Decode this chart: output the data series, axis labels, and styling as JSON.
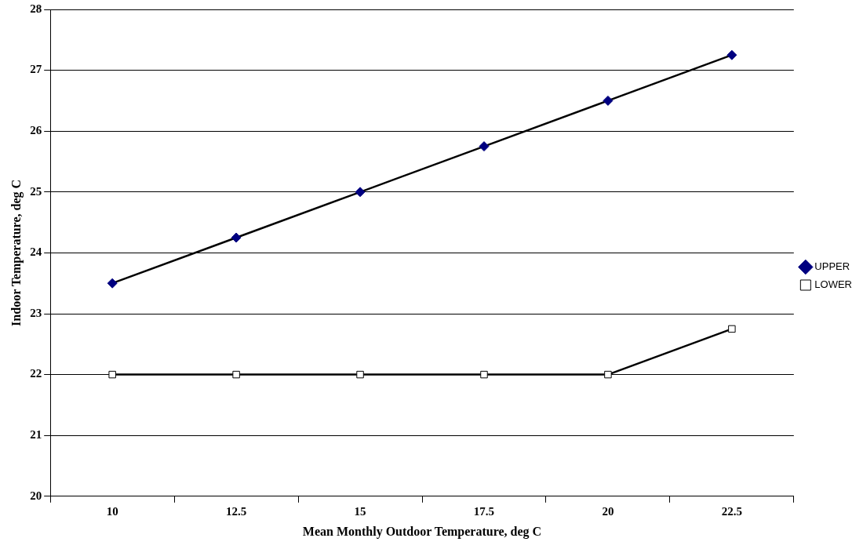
{
  "chart_data": {
    "type": "line",
    "xlabel": "Mean Monthly Outdoor Temperature, deg C",
    "ylabel": "Indoor Temperature, deg C",
    "categories": [
      "10",
      "12.5",
      "15",
      "17.5",
      "20",
      "22.5"
    ],
    "series": [
      {
        "name": "UPPER",
        "color": "#000080",
        "marker": "diamond",
        "values": [
          23.5,
          24.25,
          25,
          25.75,
          26.5,
          27.25
        ]
      },
      {
        "name": "LOWER",
        "color": "#000000",
        "marker": "square",
        "values": [
          22,
          22,
          22,
          22,
          22,
          22.75
        ]
      }
    ],
    "ylim": [
      20,
      28
    ],
    "yticks": [
      20,
      21,
      22,
      23,
      24,
      25,
      26,
      27,
      28
    ],
    "grid": "y",
    "legend": "right",
    "line_style": "solid"
  }
}
